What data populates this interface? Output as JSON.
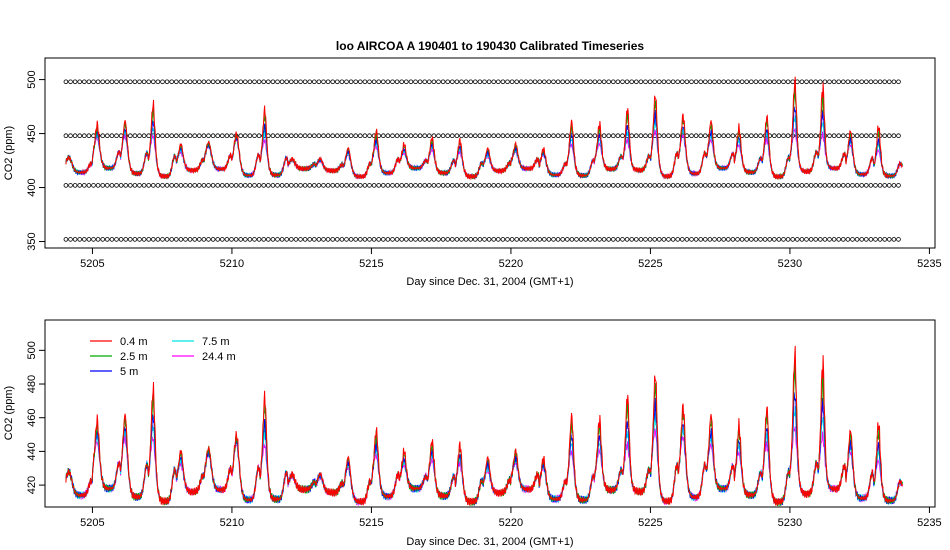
{
  "chart_data": [
    {
      "type": "scatter",
      "title": "loo   AIRCOA  A    190401  to  190430   Calibrated Timeseries",
      "xlabel": "Day since Dec. 31, 2004 (GMT+1)",
      "ylabel": "CO2 (ppm)",
      "xlim": [
        5203.3,
        5235.2
      ],
      "ylim": [
        344,
        520
      ],
      "x_ticks": [
        5205,
        5210,
        5215,
        5220,
        5225,
        5230,
        5235
      ],
      "y_ticks": [
        350,
        400,
        450,
        500
      ],
      "grid": false,
      "calibration_levels": [
        352,
        402,
        448,
        498
      ],
      "x_range": [
        5204.05,
        5234.05
      ],
      "series_colors": [
        "#ff0000",
        "#00aa00",
        "#0000ff",
        "#00e5e5",
        "#ff00ff"
      ]
    },
    {
      "type": "line",
      "xlabel": "Day since Dec. 31, 2004 (GMT+1)",
      "ylabel": "CO2 (ppm)",
      "xlim": [
        5203.3,
        5235.2
      ],
      "ylim": [
        407,
        518
      ],
      "x_ticks": [
        5205,
        5210,
        5215,
        5220,
        5225,
        5230,
        5235
      ],
      "y_ticks": [
        420,
        440,
        460,
        480,
        500
      ],
      "grid": false,
      "legend_position": "top-left",
      "series": [
        {
          "name": "0.4 m",
          "color": "#ff0000"
        },
        {
          "name": "2.5 m",
          "color": "#00aa00"
        },
        {
          "name": "5 m",
          "color": "#0000ff"
        },
        {
          "name": "7.5 m",
          "color": "#00e5e5"
        },
        {
          "name": "24.4 m",
          "color": "#ff00ff"
        }
      ],
      "x": [
        5204.0,
        5204.5,
        5205.0,
        5205.5,
        5206.0,
        5206.5,
        5207.0,
        5207.5,
        5208.0,
        5208.5,
        5209.0,
        5209.5,
        5210.0,
        5210.5,
        5211.0,
        5211.5,
        5212.0,
        5212.5,
        5213.0,
        5213.5,
        5214.0,
        5214.5,
        5215.0,
        5215.5,
        5216.0,
        5216.5,
        5217.0,
        5217.5,
        5218.0,
        5218.5,
        5219.0,
        5219.5,
        5220.0,
        5220.5,
        5221.0,
        5221.5,
        5222.0,
        5222.5,
        5223.0,
        5223.5,
        5224.0,
        5224.5,
        5225.0,
        5225.5,
        5226.0,
        5226.5,
        5227.0,
        5227.5,
        5228.0,
        5228.5,
        5229.0,
        5229.5,
        5230.0,
        5230.5,
        5231.0,
        5231.5,
        5232.0,
        5232.5,
        5233.0,
        5233.5,
        5234.0
      ],
      "daily_peak_base": [
        428,
        443,
        445,
        442,
        432,
        438,
        443,
        438,
        425,
        425,
        430,
        435,
        430,
        433,
        431,
        428,
        432,
        429,
        435,
        437,
        438,
        446,
        445,
        440,
        436,
        440,
        445,
        440,
        437,
        430,
        425,
        432
      ],
      "daily_peak_enhancement_0_4m": [
        0,
        18,
        20,
        40,
        10,
        5,
        8,
        40,
        2,
        2,
        8,
        20,
        12,
        15,
        15,
        10,
        10,
        8,
        30,
        25,
        40,
        45,
        25,
        25,
        22,
        30,
        60,
        60,
        18,
        30,
        3,
        20
      ]
    }
  ]
}
